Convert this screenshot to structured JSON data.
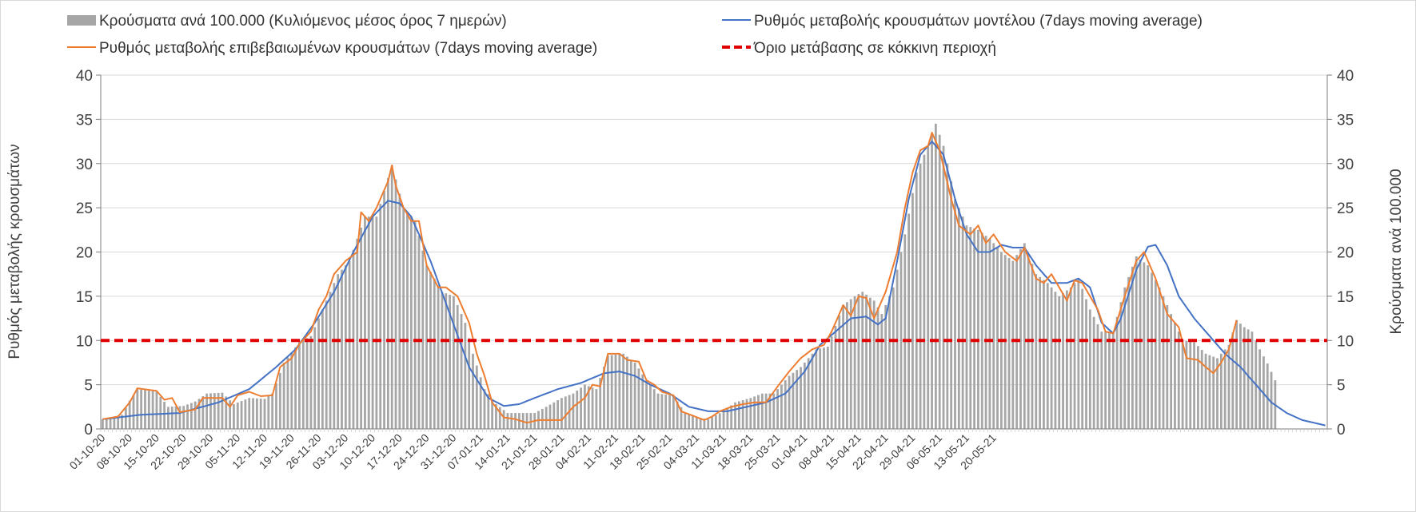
{
  "chart_data": {
    "type": "bar+line",
    "title": "",
    "legend": {
      "placement": "top",
      "entries": [
        {
          "label": "Κρούσματα ανά 100.000 (Κυλιόμενος μέσος όρος 7 ημερών)",
          "kind": "bar",
          "color": "#a6a6a6"
        },
        {
          "label": "Ρυθμός μεταβολής κρουσμάτων μοντέλου (7days moving average)",
          "kind": "line",
          "color": "#4472c4"
        },
        {
          "label": "Ρυθμός μεταβολής επιβεβαιωμένων κρουσμάτων (7days moving average)",
          "kind": "line",
          "color": "#ed7d31"
        },
        {
          "label": "Όριο μετάβασης σε κόκκινη περιοχή",
          "kind": "dashed",
          "color": "#e00000"
        }
      ]
    },
    "y_left": {
      "label": "Ρυθμός μεταβολής κρουσμάτων",
      "min": 0,
      "max": 40,
      "step": 5,
      "ticks": [
        "0",
        "5",
        "10",
        "15",
        "20",
        "25",
        "30",
        "35",
        "40"
      ]
    },
    "y_right": {
      "label": "Κρούσματα ανά 100.000",
      "min": 0,
      "max": 40,
      "step": 5,
      "ticks": [
        "0",
        "5",
        "10",
        "15",
        "20",
        "25",
        "30",
        "35",
        "40"
      ]
    },
    "grid": true,
    "x_tick_labels": [
      "01-10-20",
      "08-10-20",
      "15-10-20",
      "22-10-20",
      "29-10-20",
      "05-11-20",
      "12-11-20",
      "19-11-20",
      "26-11-20",
      "03-12-20",
      "10-12-20",
      "17-12-20",
      "24-12-20",
      "31-12-20",
      "07-01-21",
      "14-01-21",
      "21-01-21",
      "28-01-21",
      "04-02-21",
      "11-02-21",
      "18-02-21",
      "25-02-21",
      "04-03-21",
      "11-03-21",
      "18-03-21",
      "25-03-21",
      "01-04-21",
      "08-04-21",
      "15-04-21",
      "22-04-21",
      "29-04-21",
      "06-05-21",
      "13-05-21",
      "20-05-21"
    ],
    "x_start": "01-10-20",
    "bars_name": "Κρούσματα ανά 100.000 (Κυλιόμενος μέσος όρος 7 ημερών)",
    "bars_key": [
      [
        0,
        1.1
      ],
      [
        5,
        1.6
      ],
      [
        7,
        3.2
      ],
      [
        9,
        4.5
      ],
      [
        14,
        4.2
      ],
      [
        17,
        2.5
      ],
      [
        21,
        2.6
      ],
      [
        24,
        3.1
      ],
      [
        27,
        4
      ],
      [
        31,
        4.1
      ],
      [
        34,
        2.8
      ],
      [
        38,
        3.5
      ],
      [
        42,
        3.4
      ],
      [
        44,
        4
      ],
      [
        47,
        7.5
      ],
      [
        51,
        9.8
      ],
      [
        54,
        10.5
      ],
      [
        57,
        13.5
      ],
      [
        61,
        17.5
      ],
      [
        64,
        19
      ],
      [
        68,
        24
      ],
      [
        71,
        24
      ],
      [
        75,
        29.8
      ],
      [
        78,
        25
      ],
      [
        81,
        23.5
      ],
      [
        84,
        18.5
      ],
      [
        88,
        15.5
      ],
      [
        91,
        15
      ],
      [
        94,
        12
      ],
      [
        96,
        8.5
      ],
      [
        99,
        4.5
      ],
      [
        102,
        2.8
      ],
      [
        105,
        1.8
      ],
      [
        108,
        1.8
      ],
      [
        112,
        1.8
      ],
      [
        115,
        2.5
      ],
      [
        119,
        3.5
      ],
      [
        122,
        4
      ],
      [
        125,
        5
      ],
      [
        128,
        4.5
      ],
      [
        131,
        8.3
      ],
      [
        135,
        8.5
      ],
      [
        138,
        7.5
      ],
      [
        141,
        5.5
      ],
      [
        144,
        4
      ],
      [
        148,
        3.8
      ],
      [
        151,
        1.8
      ],
      [
        154,
        1.3
      ],
      [
        157,
        1.1
      ],
      [
        161,
        2
      ],
      [
        164,
        3
      ],
      [
        168,
        3.5
      ],
      [
        171,
        4
      ],
      [
        174,
        4
      ],
      [
        178,
        6
      ],
      [
        181,
        7
      ],
      [
        185,
        9
      ],
      [
        188,
        9.3
      ],
      [
        192,
        14
      ],
      [
        195,
        15
      ],
      [
        197,
        15.5
      ],
      [
        200,
        14.5
      ],
      [
        202,
        13
      ],
      [
        205,
        16
      ],
      [
        208,
        22
      ],
      [
        211,
        29
      ],
      [
        214,
        32
      ],
      [
        216,
        34.5
      ],
      [
        218,
        32
      ],
      [
        221,
        26
      ],
      [
        224,
        23
      ],
      [
        227,
        22.5
      ],
      [
        230,
        21.5
      ],
      [
        233,
        20
      ],
      [
        236,
        19
      ],
      [
        239,
        21
      ],
      [
        242,
        17.5
      ],
      [
        245,
        16.5
      ],
      [
        248,
        15
      ],
      [
        251,
        16
      ],
      [
        253,
        17
      ],
      [
        256,
        13.5
      ],
      [
        259,
        11
      ],
      [
        262,
        11
      ],
      [
        265,
        16
      ],
      [
        268,
        19.5
      ],
      [
        271,
        18.5
      ],
      [
        274,
        16
      ],
      [
        277,
        13
      ],
      [
        280,
        10
      ],
      [
        283,
        9.8
      ],
      [
        286,
        8.5
      ],
      [
        289,
        8
      ],
      [
        292,
        9.5
      ],
      [
        294,
        12.3
      ],
      [
        296,
        11.5
      ],
      [
        298,
        11
      ],
      [
        300,
        9
      ],
      [
        302,
        7.4
      ],
      [
        304,
        5.5
      ]
    ],
    "orange_name": "Ρυθμός μεταβολής επιβεβαιωμένων κρουσμάτων (7days moving average)",
    "orange_key": [
      [
        0,
        1.1
      ],
      [
        4,
        1.4
      ],
      [
        7,
        3
      ],
      [
        9,
        4.6
      ],
      [
        14,
        4.3
      ],
      [
        16,
        3.3
      ],
      [
        18,
        3.5
      ],
      [
        20,
        1.9
      ],
      [
        24,
        2.2
      ],
      [
        26,
        3.5
      ],
      [
        31,
        3.5
      ],
      [
        33,
        2.5
      ],
      [
        35,
        3.8
      ],
      [
        38,
        4.2
      ],
      [
        41,
        3.7
      ],
      [
        44,
        3.8
      ],
      [
        46,
        7
      ],
      [
        49,
        8
      ],
      [
        51,
        9.6
      ],
      [
        54,
        11
      ],
      [
        56,
        13.5
      ],
      [
        58,
        15
      ],
      [
        60,
        17.5
      ],
      [
        63,
        19
      ],
      [
        66,
        20
      ],
      [
        67,
        24.5
      ],
      [
        69,
        23.5
      ],
      [
        71,
        25
      ],
      [
        74,
        28
      ],
      [
        75,
        29.8
      ],
      [
        76,
        27.5
      ],
      [
        78,
        25
      ],
      [
        80,
        23.5
      ],
      [
        82,
        23.5
      ],
      [
        84,
        18.5
      ],
      [
        87,
        16
      ],
      [
        89,
        16
      ],
      [
        92,
        15
      ],
      [
        95,
        12
      ],
      [
        97,
        8.5
      ],
      [
        99,
        6
      ],
      [
        101,
        3
      ],
      [
        104,
        1.3
      ],
      [
        107,
        1.1
      ],
      [
        110,
        0.7
      ],
      [
        113,
        1
      ],
      [
        119,
        1
      ],
      [
        122,
        2.5
      ],
      [
        125,
        3.5
      ],
      [
        127,
        5
      ],
      [
        129,
        4.8
      ],
      [
        131,
        8.5
      ],
      [
        134,
        8.5
      ],
      [
        136,
        7.8
      ],
      [
        139,
        7.6
      ],
      [
        141,
        5.5
      ],
      [
        143,
        5
      ],
      [
        145,
        4.2
      ],
      [
        148,
        3.8
      ],
      [
        150,
        2
      ],
      [
        153,
        1.5
      ],
      [
        156,
        1
      ],
      [
        158,
        1.4
      ],
      [
        160,
        2
      ],
      [
        163,
        2.5
      ],
      [
        166,
        2.8
      ],
      [
        169,
        3
      ],
      [
        172,
        3
      ],
      [
        175,
        4.8
      ],
      [
        178,
        6.5
      ],
      [
        181,
        8
      ],
      [
        184,
        9
      ],
      [
        187,
        9.5
      ],
      [
        189,
        11
      ],
      [
        192,
        14
      ],
      [
        194,
        12.8
      ],
      [
        196,
        15
      ],
      [
        198,
        14.8
      ],
      [
        200,
        12.5
      ],
      [
        203,
        15.5
      ],
      [
        206,
        20
      ],
      [
        208,
        25
      ],
      [
        210,
        29
      ],
      [
        212,
        31.5
      ],
      [
        214,
        32
      ],
      [
        215,
        33.5
      ],
      [
        217,
        31.5
      ],
      [
        220,
        26
      ],
      [
        222,
        23
      ],
      [
        225,
        22
      ],
      [
        227,
        23
      ],
      [
        229,
        21
      ],
      [
        231,
        22
      ],
      [
        234,
        20
      ],
      [
        237,
        19
      ],
      [
        239,
        20.5
      ],
      [
        242,
        17
      ],
      [
        244,
        16.5
      ],
      [
        246,
        17.5
      ],
      [
        248,
        16
      ],
      [
        250,
        14.5
      ],
      [
        252,
        16.8
      ],
      [
        254,
        16.5
      ],
      [
        256,
        15
      ],
      [
        258,
        13.5
      ],
      [
        260,
        11
      ],
      [
        262,
        10.8
      ],
      [
        265,
        15
      ],
      [
        268,
        19
      ],
      [
        270,
        20
      ],
      [
        273,
        17
      ],
      [
        276,
        13
      ],
      [
        279,
        11.5
      ],
      [
        281,
        8
      ],
      [
        284,
        7.8
      ],
      [
        286,
        7
      ],
      [
        288,
        6.3
      ],
      [
        290,
        7.5
      ],
      [
        292,
        9
      ],
      [
        294,
        12.3
      ]
    ],
    "blue_name": "Ρυθμός μεταβολής κρουσμάτων μοντέλου (7days moving average)",
    "blue_key": [
      [
        0,
        1.1
      ],
      [
        10,
        1.6
      ],
      [
        20,
        1.8
      ],
      [
        30,
        3
      ],
      [
        38,
        4.5
      ],
      [
        45,
        7
      ],
      [
        50,
        9
      ],
      [
        55,
        12
      ],
      [
        60,
        15.5
      ],
      [
        65,
        20
      ],
      [
        70,
        24
      ],
      [
        74,
        25.8
      ],
      [
        77,
        25.5
      ],
      [
        80,
        24
      ],
      [
        85,
        19
      ],
      [
        90,
        13
      ],
      [
        95,
        7
      ],
      [
        100,
        3.5
      ],
      [
        104,
        2.6
      ],
      [
        108,
        2.8
      ],
      [
        112,
        3.5
      ],
      [
        118,
        4.5
      ],
      [
        124,
        5.2
      ],
      [
        130,
        6.3
      ],
      [
        134,
        6.5
      ],
      [
        138,
        6
      ],
      [
        142,
        5
      ],
      [
        147,
        4
      ],
      [
        152,
        2.5
      ],
      [
        157,
        2
      ],
      [
        162,
        2
      ],
      [
        167,
        2.5
      ],
      [
        172,
        3
      ],
      [
        177,
        4
      ],
      [
        182,
        6.5
      ],
      [
        186,
        9.5
      ],
      [
        190,
        11
      ],
      [
        194,
        12.5
      ],
      [
        198,
        12.7
      ],
      [
        201,
        11.8
      ],
      [
        203,
        12.5
      ],
      [
        206,
        19
      ],
      [
        209,
        26
      ],
      [
        212,
        31
      ],
      [
        215,
        32.5
      ],
      [
        218,
        31
      ],
      [
        221,
        26
      ],
      [
        224,
        22
      ],
      [
        227,
        20
      ],
      [
        230,
        20
      ],
      [
        233,
        20.8
      ],
      [
        236,
        20.5
      ],
      [
        239,
        20.5
      ],
      [
        242,
        18.5
      ],
      [
        246,
        16.5
      ],
      [
        250,
        16.5
      ],
      [
        253,
        17
      ],
      [
        256,
        16
      ],
      [
        259,
        12
      ],
      [
        262,
        10.8
      ],
      [
        264,
        12.5
      ],
      [
        268,
        18
      ],
      [
        271,
        20.6
      ],
      [
        273,
        20.8
      ],
      [
        276,
        18.5
      ],
      [
        279,
        15
      ],
      [
        283,
        12.5
      ],
      [
        287,
        10.5
      ],
      [
        291,
        8.5
      ],
      [
        295,
        7
      ],
      [
        299,
        5
      ],
      [
        303,
        3
      ],
      [
        307,
        1.8
      ],
      [
        311,
        1
      ],
      [
        315,
        0.6
      ],
      [
        317,
        0.4
      ]
    ],
    "threshold": {
      "label": "Όριο μετάβασης σε κόκκινη περιοχή",
      "value": 10
    },
    "x_days": 318
  }
}
